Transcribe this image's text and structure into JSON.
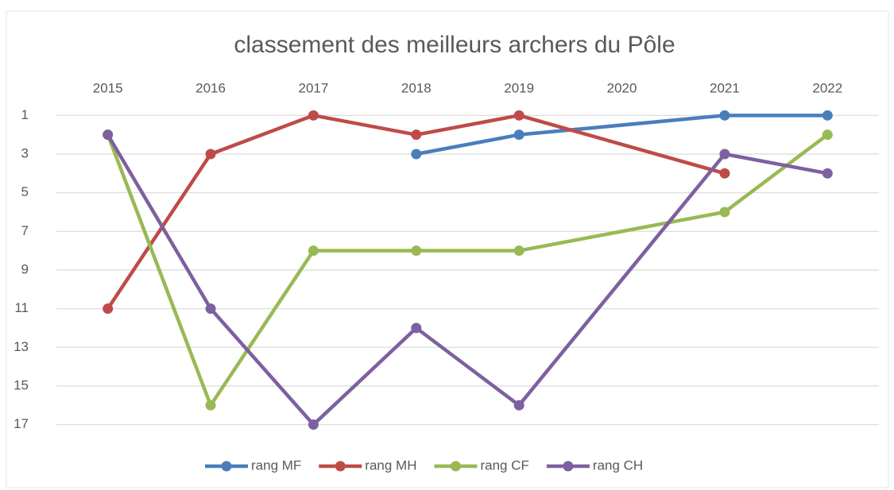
{
  "chart_data": {
    "type": "line",
    "title": "classement des meilleurs archers du Pôle",
    "categories": [
      "2015",
      "2016",
      "2017",
      "2018",
      "2019",
      "2020",
      "2021",
      "2022"
    ],
    "series": [
      {
        "name": "rang MF",
        "color": "#4a7ebb",
        "values": [
          null,
          null,
          null,
          3,
          2,
          null,
          1,
          1
        ]
      },
      {
        "name": "rang MH",
        "color": "#be4b48",
        "values": [
          11,
          3,
          1,
          2,
          1,
          null,
          4,
          null
        ]
      },
      {
        "name": "rang CF",
        "color": "#98b954",
        "values": [
          2,
          16,
          8,
          8,
          8,
          null,
          6,
          2
        ]
      },
      {
        "name": "rang CH",
        "color": "#7d60a0",
        "values": [
          2,
          11,
          17,
          12,
          16,
          null,
          3,
          4
        ]
      }
    ],
    "ylim": [
      18,
      0
    ],
    "yticks": [
      1,
      3,
      5,
      7,
      9,
      11,
      13,
      15,
      17
    ],
    "grid": true,
    "connect_gaps": true,
    "legend": "bottom"
  }
}
